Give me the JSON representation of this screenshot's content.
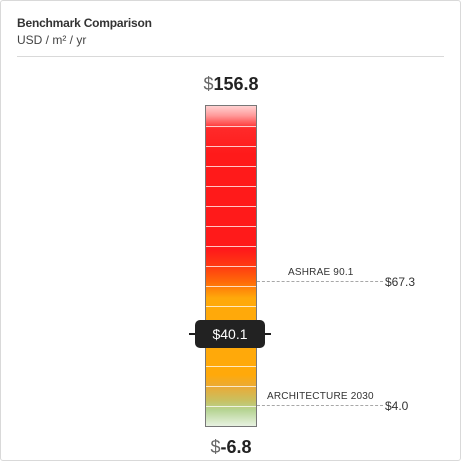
{
  "header": {
    "title": "Benchmark Comparison",
    "units": "USD / m² / yr"
  },
  "gauge": {
    "currency": "$",
    "max_label": "156.8",
    "min_label": "-6.8",
    "max_value": 156.8,
    "min_value": -6.8,
    "current_label": "$40.1",
    "current_value": 40.1,
    "benchmarks": [
      {
        "name": "ASHRAE 90.1",
        "value_label": "$67.3",
        "value": 67.3
      },
      {
        "name": "ARCHITECTURE 2030",
        "value_label": "$4.0",
        "value": 4.0
      }
    ]
  }
}
